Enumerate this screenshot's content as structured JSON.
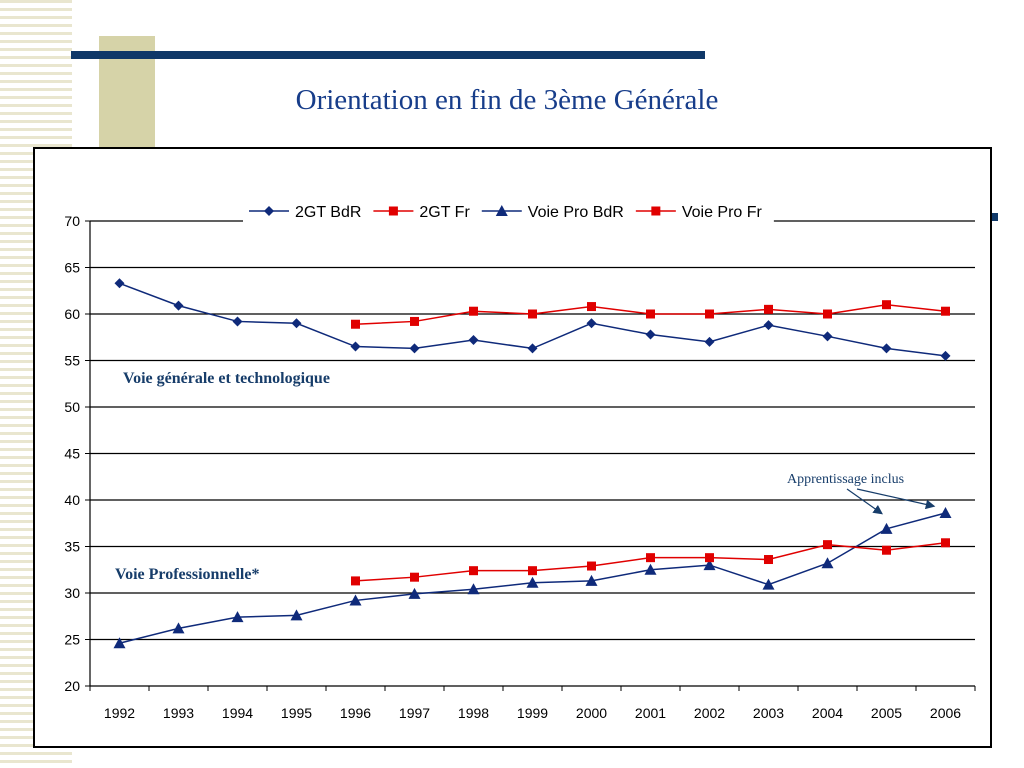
{
  "slide": {
    "title": "Orientation en fin de 3ème Générale"
  },
  "colors": {
    "bdr": "#0f2a7a",
    "fr": "#e00000",
    "title": "#173d8a",
    "annotation": "#173d6a"
  },
  "chart_data": {
    "type": "line",
    "title": "",
    "xlabel": "",
    "ylabel": "",
    "x": [
      "1992",
      "1993",
      "1994",
      "1995",
      "1996",
      "1997",
      "1998",
      "1999",
      "2000",
      "2001",
      "2002",
      "2003",
      "2004",
      "2005",
      "2006"
    ],
    "ylim": [
      20,
      70
    ],
    "yticks": [
      20,
      25,
      30,
      35,
      40,
      45,
      50,
      55,
      60,
      65,
      70
    ],
    "grid": true,
    "legend_position": "top",
    "series": [
      {
        "name": "2GT BdR",
        "marker": "diamond",
        "color": "#0f2a7a",
        "values": [
          63.3,
          60.9,
          59.2,
          59.0,
          56.5,
          56.3,
          57.2,
          56.3,
          59.0,
          57.8,
          57.0,
          58.8,
          57.6,
          56.3,
          55.5
        ]
      },
      {
        "name": "2GT Fr",
        "marker": "square",
        "color": "#e00000",
        "values": [
          null,
          null,
          null,
          null,
          58.9,
          59.2,
          60.3,
          60.0,
          60.8,
          60.0,
          60.0,
          60.5,
          60.0,
          61.0,
          60.3
        ]
      },
      {
        "name": "Voie Pro BdR",
        "marker": "triangle",
        "color": "#0f2a7a",
        "values": [
          24.6,
          26.2,
          27.4,
          27.6,
          29.2,
          29.9,
          30.4,
          31.1,
          31.3,
          32.5,
          33.0,
          30.9,
          33.2,
          36.9,
          38.6
        ]
      },
      {
        "name": "Voie Pro Fr",
        "marker": "square",
        "color": "#e00000",
        "values": [
          null,
          null,
          null,
          null,
          31.3,
          31.7,
          32.4,
          32.4,
          32.9,
          33.8,
          33.8,
          33.6,
          35.2,
          34.6,
          35.4
        ]
      }
    ],
    "annotations": {
      "general": "Voie générale et technologique",
      "pro": "Voie Professionnelle*",
      "apprentissage": "Apprentissage inclus"
    }
  }
}
